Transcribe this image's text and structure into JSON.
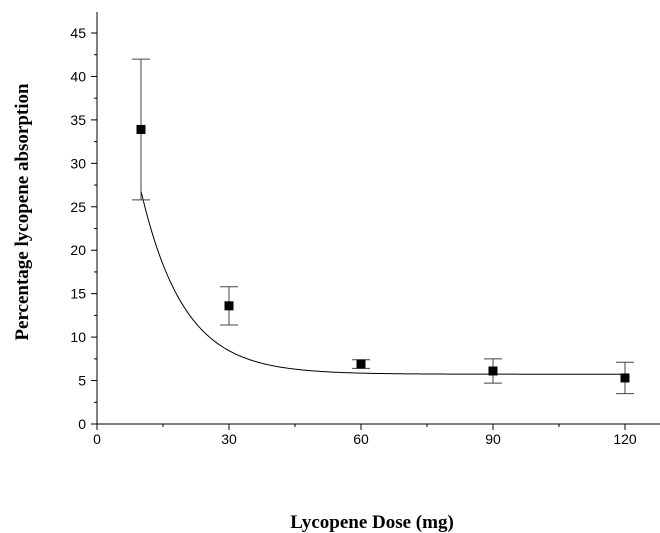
{
  "chart_data": {
    "type": "scatter",
    "title": "",
    "xlabel": "Lycopene Dose (mg)",
    "ylabel": "Percentage lycopene absorption",
    "xlim": [
      0,
      130
    ],
    "ylim": [
      0,
      47.5
    ],
    "x_ticks": [
      "0",
      "30",
      "60",
      "90",
      "120"
    ],
    "x_tick_values": [
      0,
      30,
      60,
      90,
      120
    ],
    "x_minor_ticks": [
      15,
      45,
      75,
      105
    ],
    "y_ticks": [
      "0",
      "5",
      "10",
      "15",
      "20",
      "25",
      "30",
      "35",
      "40",
      "45"
    ],
    "y_tick_values": [
      0,
      5,
      10,
      15,
      20,
      25,
      30,
      35,
      40,
      45
    ],
    "grid": false,
    "series": [
      {
        "marker": "filled-square",
        "color": "#000000",
        "points": [
          {
            "x": 10,
            "y": 33.9,
            "err_low": 25.8,
            "err_high": 42.0
          },
          {
            "x": 30,
            "y": 13.6,
            "err_low": 11.4,
            "err_high": 15.8
          },
          {
            "x": 60,
            "y": 6.9,
            "err_low": 6.4,
            "err_high": 7.4
          },
          {
            "x": 90,
            "y": 6.1,
            "err_low": 4.7,
            "err_high": 7.5
          },
          {
            "x": 120,
            "y": 5.3,
            "err_low": 3.5,
            "err_high": 7.1
          }
        ]
      }
    ],
    "fit_curve": {
      "type": "exponential-decay",
      "color": "#000000",
      "y0": 5.73,
      "A": 58.8,
      "t": 9.75,
      "x_range": [
        10,
        120
      ]
    }
  }
}
